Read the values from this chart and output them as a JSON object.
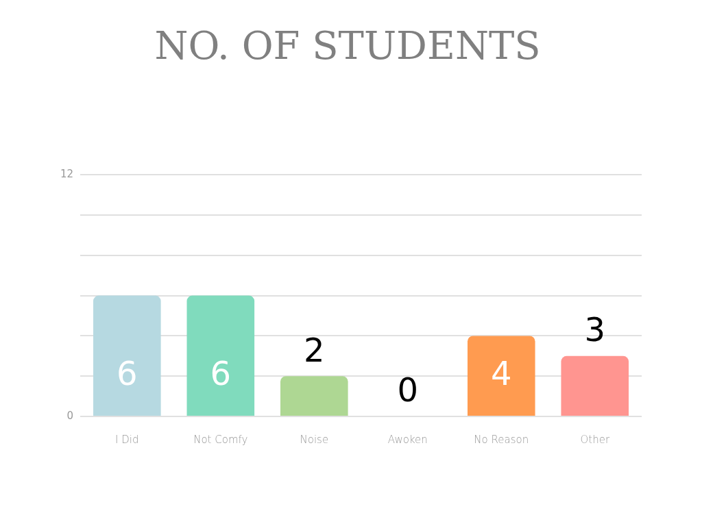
{
  "chart_data": {
    "type": "bar",
    "title": "NO. OF STUDENTS",
    "categories": [
      "I Did",
      "Not Comfy",
      "Noise",
      "Awoken",
      "No Reason",
      "Other"
    ],
    "values": [
      6,
      6,
      2,
      0,
      4,
      3
    ],
    "colors": [
      "#b6d9e1",
      "#80dbbd",
      "#aed793",
      "#d9d9d9",
      "#ff9b50",
      "#ff9590"
    ],
    "ylim": [
      0,
      12
    ],
    "yticks": [
      0,
      {
        "value": 2,
        "label": null
      },
      {
        "value": 4,
        "label": null
      },
      {
        "value": 6,
        "label": null
      },
      {
        "value": 8,
        "label": null
      },
      {
        "value": 10,
        "label": null
      },
      12
    ],
    "grid": "y",
    "legend": false,
    "data_labels": true
  }
}
